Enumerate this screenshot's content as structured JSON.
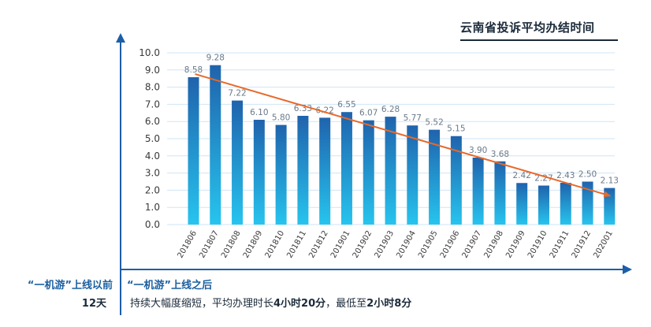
{
  "chart_data": {
    "type": "bar",
    "title": "云南省投诉平均办结时间",
    "categories": [
      "201806",
      "201807",
      "201808",
      "201809",
      "201810",
      "201811",
      "201812",
      "201901",
      "201902",
      "201903",
      "201904",
      "201905",
      "201906",
      "201907",
      "201908",
      "201909",
      "201910",
      "201911",
      "201912",
      "202001"
    ],
    "values": [
      8.58,
      9.28,
      7.22,
      6.1,
      5.8,
      6.33,
      6.22,
      6.55,
      6.07,
      6.28,
      5.77,
      5.52,
      5.15,
      3.9,
      3.68,
      2.42,
      2.27,
      2.43,
      2.5,
      2.13
    ],
    "value_labels": [
      "8.58",
      "9.28",
      "7.22",
      "6.10",
      "5.80",
      "6.33",
      "6.22",
      "6.55",
      "6.07",
      "6.28",
      "5.77",
      "5.52",
      "5.15",
      "3.90",
      "3.68",
      "2.42",
      "2.27",
      "2.43",
      "2.50",
      "2.13"
    ],
    "y_ticks": [
      "0.0",
      "1.0",
      "2.0",
      "3.0",
      "4.0",
      "5.0",
      "6.0",
      "7.0",
      "8.0",
      "9.0",
      "10.0"
    ],
    "ylim": [
      0,
      10
    ],
    "trend_line": {
      "from": 8.58,
      "to": 2.13
    },
    "grid": true,
    "colors": {
      "bar_top": "#1f63ad",
      "bar_bottom": "#27c4ee",
      "trend": "#e8682a",
      "axis": "#1d5ea8",
      "grid": "#cfe6f5"
    }
  },
  "annotations": {
    "before_label": "“一机游”上线以前",
    "before_value": "12天",
    "after_label": "“一机游”上线之后",
    "after_desc_1": "持续大幅度缩短，平均办理时长",
    "after_desc_2": "4小时20分",
    "after_desc_3": "，最低至",
    "after_desc_4": "2小时8分"
  }
}
